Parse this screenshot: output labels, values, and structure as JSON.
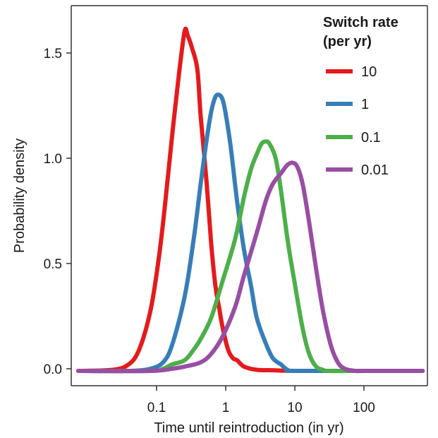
{
  "chart_data": {
    "type": "line",
    "title": "",
    "xlabel": "Time until reintroduction (in yr)",
    "ylabel": "Probability density",
    "x_scale": "log10",
    "xlim": [
      0.008,
      700
    ],
    "ylim": [
      -0.07,
      1.72
    ],
    "x_ticks": [
      {
        "value": 0.1,
        "label": "0.1"
      },
      {
        "value": 1,
        "label": "1"
      },
      {
        "value": 10,
        "label": "10"
      },
      {
        "value": 100,
        "label": "100"
      }
    ],
    "y_ticks": [
      {
        "value": 0,
        "label": "0.0"
      },
      {
        "value": 0.5,
        "label": "0.5"
      },
      {
        "value": 1.0,
        "label": "1.0"
      },
      {
        "value": 1.5,
        "label": "1.5"
      }
    ],
    "grid": false,
    "legend": {
      "title_line1": "Switch rate",
      "title_line2": "(per yr)",
      "position": "top-right"
    },
    "series": [
      {
        "name": "10",
        "color": "#e41a1c",
        "points": [
          [
            0.01,
            0
          ],
          [
            0.03,
            0.005
          ],
          [
            0.05,
            0.03
          ],
          [
            0.07,
            0.1
          ],
          [
            0.1,
            0.28
          ],
          [
            0.13,
            0.52
          ],
          [
            0.16,
            0.78
          ],
          [
            0.2,
            1.1
          ],
          [
            0.25,
            1.4
          ],
          [
            0.3,
            1.6
          ],
          [
            0.33,
            1.58
          ],
          [
            0.38,
            1.52
          ],
          [
            0.45,
            1.42
          ],
          [
            0.5,
            1.2
          ],
          [
            0.6,
            0.9
          ],
          [
            0.7,
            0.6
          ],
          [
            0.8,
            0.4
          ],
          [
            0.9,
            0.3
          ],
          [
            1.0,
            0.21
          ],
          [
            1.2,
            0.1
          ],
          [
            1.4,
            0.06
          ],
          [
            1.6,
            0.05
          ],
          [
            2.0,
            0.02
          ],
          [
            3.0,
            0.005
          ],
          [
            5.0,
            0.003
          ],
          [
            10,
            0
          ],
          [
            100,
            0
          ],
          [
            600,
            0
          ]
        ]
      },
      {
        "name": "1",
        "color": "#377eb8",
        "points": [
          [
            0.01,
            0
          ],
          [
            0.05,
            0
          ],
          [
            0.1,
            0.01
          ],
          [
            0.15,
            0.04
          ],
          [
            0.2,
            0.12
          ],
          [
            0.3,
            0.35
          ],
          [
            0.4,
            0.62
          ],
          [
            0.5,
            0.88
          ],
          [
            0.6,
            1.08
          ],
          [
            0.7,
            1.22
          ],
          [
            0.8,
            1.29
          ],
          [
            0.9,
            1.3
          ],
          [
            1.0,
            1.28
          ],
          [
            1.1,
            1.22
          ],
          [
            1.3,
            1.06
          ],
          [
            1.6,
            0.8
          ],
          [
            2.0,
            0.57
          ],
          [
            2.5,
            0.4
          ],
          [
            3.0,
            0.25
          ],
          [
            4.0,
            0.13
          ],
          [
            5.0,
            0.06
          ],
          [
            6.5,
            0.03
          ],
          [
            8.0,
            0.005
          ],
          [
            10,
            0
          ],
          [
            100,
            0
          ],
          [
            600,
            0
          ]
        ]
      },
      {
        "name": "0.1",
        "color": "#4daf4a",
        "points": [
          [
            0.01,
            0
          ],
          [
            0.1,
            0
          ],
          [
            0.15,
            0.01
          ],
          [
            0.2,
            0.03
          ],
          [
            0.3,
            0.05
          ],
          [
            0.4,
            0.1
          ],
          [
            0.5,
            0.15
          ],
          [
            0.7,
            0.25
          ],
          [
            1.0,
            0.42
          ],
          [
            1.5,
            0.62
          ],
          [
            2.0,
            0.82
          ],
          [
            2.5,
            0.95
          ],
          [
            3.0,
            1.02
          ],
          [
            3.5,
            1.07
          ],
          [
            4.0,
            1.08
          ],
          [
            4.5,
            1.07
          ],
          [
            5.5,
            1.0
          ],
          [
            6.5,
            0.85
          ],
          [
            8.0,
            0.62
          ],
          [
            10,
            0.42
          ],
          [
            13,
            0.2
          ],
          [
            16,
            0.08
          ],
          [
            20,
            0.02
          ],
          [
            25,
            0.005
          ],
          [
            30,
            0
          ],
          [
            100,
            0
          ],
          [
            600,
            0
          ]
        ]
      },
      {
        "name": "0.01",
        "color": "#984ea3",
        "points": [
          [
            0.01,
            0
          ],
          [
            0.1,
            0
          ],
          [
            0.2,
            0.01
          ],
          [
            0.3,
            0.02
          ],
          [
            0.5,
            0.04
          ],
          [
            0.7,
            0.08
          ],
          [
            1.0,
            0.16
          ],
          [
            1.5,
            0.3
          ],
          [
            2.0,
            0.45
          ],
          [
            3.0,
            0.65
          ],
          [
            4.0,
            0.8
          ],
          [
            5.0,
            0.88
          ],
          [
            6.5,
            0.93
          ],
          [
            8.0,
            0.97
          ],
          [
            9.5,
            0.98
          ],
          [
            11,
            0.96
          ],
          [
            13,
            0.88
          ],
          [
            16,
            0.7
          ],
          [
            20,
            0.48
          ],
          [
            25,
            0.28
          ],
          [
            32,
            0.12
          ],
          [
            40,
            0.04
          ],
          [
            50,
            0.01
          ],
          [
            70,
            0
          ],
          [
            100,
            0
          ],
          [
            600,
            0
          ]
        ]
      }
    ]
  }
}
